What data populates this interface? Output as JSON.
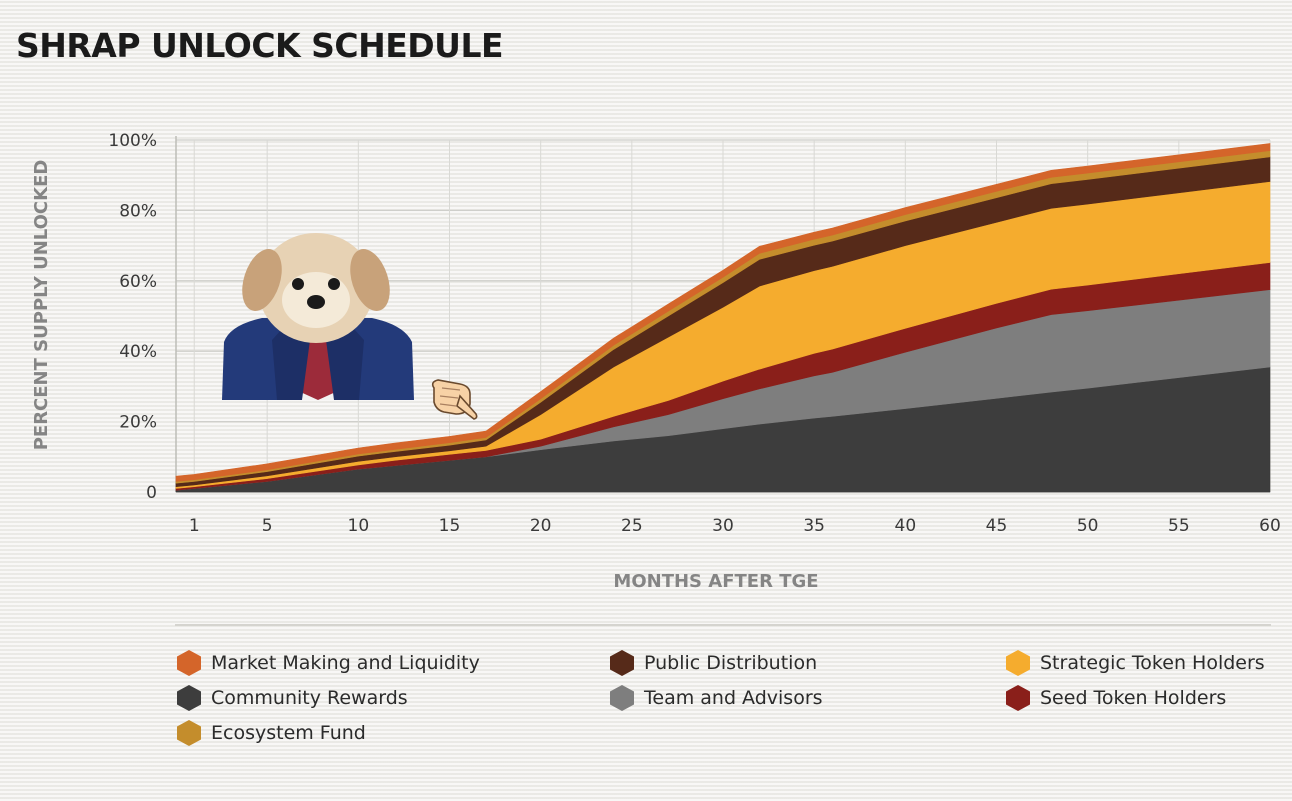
{
  "title": "SHRAP UNLOCK SCHEDULE",
  "chart_data": {
    "type": "area",
    "stacked": true,
    "title": "SHRAP UNLOCK SCHEDULE",
    "xlabel": "MONTHS AFTER TGE",
    "ylabel": "PERCENT SUPPLY UNLOCKED",
    "xlim": [
      0,
      60
    ],
    "ylim": [
      0,
      100
    ],
    "x_ticks": [
      "1",
      "5",
      "10",
      "15",
      "20",
      "25",
      "30",
      "35",
      "40",
      "45",
      "50",
      "55",
      "60"
    ],
    "y_ticks": [
      "0",
      "20%",
      "40%",
      "60%",
      "80%",
      "100%"
    ],
    "x": [
      0,
      1,
      5,
      10,
      12,
      15,
      17,
      20,
      24,
      27,
      30,
      32,
      35,
      36,
      40,
      45,
      48,
      50,
      55,
      60
    ],
    "series": [
      {
        "name": "Community Rewards",
        "color": "#3d3d3d",
        "values": [
          0.5,
          1,
          3,
          6.5,
          7.5,
          9,
          10,
          12,
          14.5,
          16,
          18,
          19.3,
          21,
          21.5,
          23.7,
          26.6,
          28.4,
          29.5,
          32.5,
          35.5
        ]
      },
      {
        "name": "Team and Advisors",
        "color": "#7e7e7e",
        "values": [
          0,
          0,
          0,
          0,
          0,
          0,
          0,
          1,
          4,
          6,
          8.5,
          10,
          12,
          12.5,
          16,
          20,
          22,
          22,
          22,
          22
        ]
      },
      {
        "name": "Seed Token Holders",
        "color": "#8a1f1a",
        "values": [
          0.5,
          0.5,
          0.8,
          1.2,
          1.5,
          1.7,
          1.8,
          2,
          3,
          4,
          5,
          5.6,
          6.4,
          6.6,
          6.8,
          7,
          7.2,
          7.3,
          7.5,
          7.7
        ]
      },
      {
        "name": "Strategic Token Holders",
        "color": "#f5ac2e",
        "values": [
          0.5,
          0.5,
          0.8,
          1,
          1,
          1,
          1.2,
          7,
          14,
          18,
          21,
          23.6,
          23.5,
          23.5,
          23.5,
          23,
          23,
          23,
          23,
          23
        ]
      },
      {
        "name": "Public Distribution",
        "color": "#562a19",
        "values": [
          1,
          1,
          1.2,
          1.5,
          1.5,
          1.6,
          1.8,
          3.5,
          5,
          6,
          7,
          7.6,
          7.2,
          7.2,
          7,
          7,
          7,
          7,
          7,
          7
        ]
      },
      {
        "name": "Ecosystem Fund",
        "color": "#c48d2c",
        "values": [
          0.5,
          0.5,
          0.5,
          0.6,
          0.6,
          0.7,
          0.7,
          1,
          1.2,
          1.4,
          1.5,
          1.7,
          1.7,
          1.7,
          1.8,
          1.8,
          1.8,
          1.8,
          1.8,
          1.8
        ]
      },
      {
        "name": "Market Making and Liquidity",
        "color": "#d4652a",
        "values": [
          1.5,
          1.5,
          1.7,
          1.7,
          1.8,
          1.8,
          1.8,
          2,
          2,
          2,
          2,
          2,
          2,
          2,
          2,
          2,
          2,
          2,
          2,
          2
        ]
      }
    ]
  },
  "legend": [
    {
      "label": "Market Making and Liquidity",
      "color": "#d4652a"
    },
    {
      "label": "Public Distribution",
      "color": "#562a19"
    },
    {
      "label": "Strategic Token Holders",
      "color": "#f5ac2e"
    },
    {
      "label": "Community Rewards",
      "color": "#3d3d3d"
    },
    {
      "label": "Team and Advisors",
      "color": "#7e7e7e"
    },
    {
      "label": "Seed Token Holders",
      "color": "#8a1f1a"
    },
    {
      "label": "Ecosystem Fund",
      "color": "#c48d2c"
    }
  ],
  "decorations": {
    "mascot": "puppy-in-suit",
    "pointer": "pointing-hand-icon"
  }
}
